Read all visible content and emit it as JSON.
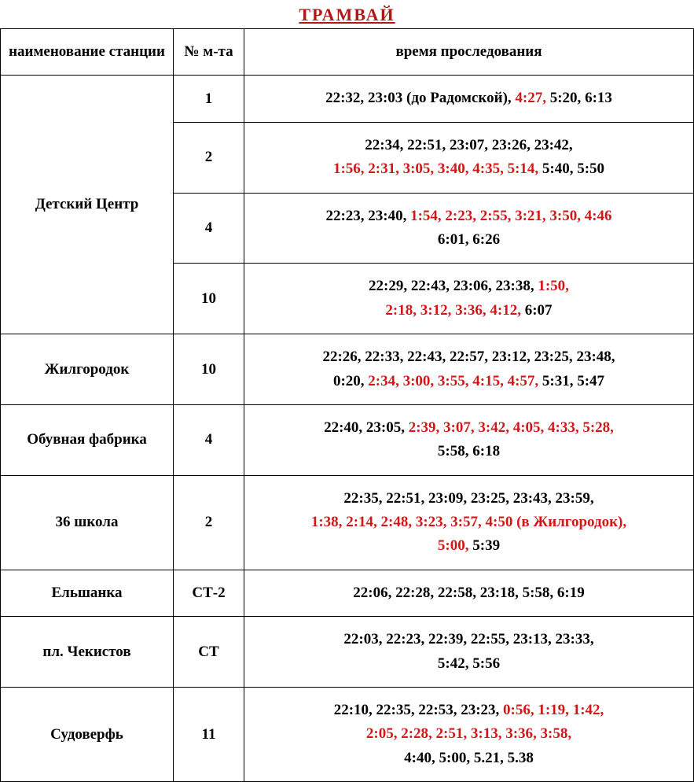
{
  "title": "ТРАМВАЙ",
  "headers": {
    "station": "наименование станции",
    "route": "№ м-та",
    "times": "время проследования"
  },
  "rows": [
    {
      "station": "Детский Центр",
      "rowspan": 4,
      "route": "1",
      "times": [
        {
          "text": "22:32,",
          "color": "black"
        },
        {
          "text": "  23:03 ",
          "color": "black"
        },
        {
          "text": "(до Радомской),",
          "color": "black"
        },
        {
          "text": "  4:27,",
          "color": "red"
        },
        {
          "text": "  5:20,",
          "color": "black"
        },
        {
          "text": "  6:13",
          "color": "black"
        }
      ]
    },
    {
      "route": "2",
      "times": [
        {
          "text": "22:34,",
          "color": "black"
        },
        {
          "text": "  22:51,",
          "color": "black"
        },
        {
          "text": "  23:07,",
          "color": "black"
        },
        {
          "text": "  23:26,",
          "color": "black"
        },
        {
          "text": "  23:42,",
          "color": "black"
        },
        {
          "text": "\n",
          "color": "black"
        },
        {
          "text": "1:56,",
          "color": "red"
        },
        {
          "text": "  2:31,",
          "color": "red"
        },
        {
          "text": "  3:05,",
          "color": "red"
        },
        {
          "text": "  3:40,",
          "color": "red"
        },
        {
          "text": "  4:35,",
          "color": "red"
        },
        {
          "text": "  5:14,",
          "color": "red"
        },
        {
          "text": "  5:40,",
          "color": "black"
        },
        {
          "text": "  5:50",
          "color": "black"
        }
      ]
    },
    {
      "route": "4",
      "times": [
        {
          "text": "22:23,",
          "color": "black"
        },
        {
          "text": "  23:40,",
          "color": "black"
        },
        {
          "text": "  1:54,",
          "color": "red"
        },
        {
          "text": "  2:23,",
          "color": "red"
        },
        {
          "text": "  2:55,",
          "color": "red"
        },
        {
          "text": "  3:21,",
          "color": "red"
        },
        {
          "text": "  3:50,",
          "color": "red"
        },
        {
          "text": "  4:46",
          "color": "red"
        },
        {
          "text": "\n",
          "color": "black"
        },
        {
          "text": "6:01,",
          "color": "black"
        },
        {
          "text": "  6:26",
          "color": "black"
        }
      ]
    },
    {
      "route": "10",
      "times": [
        {
          "text": "22:29,",
          "color": "black"
        },
        {
          "text": "  22:43,",
          "color": "black"
        },
        {
          "text": "  23:06,",
          "color": "black"
        },
        {
          "text": "  23:38,",
          "color": "black"
        },
        {
          "text": " 1:50,",
          "color": "red"
        },
        {
          "text": "\n",
          "color": "black"
        },
        {
          "text": "2:18,",
          "color": "red"
        },
        {
          "text": "  3:12,",
          "color": "red"
        },
        {
          "text": "  3:36,",
          "color": "red"
        },
        {
          "text": "  4:12,",
          "color": "red"
        },
        {
          "text": "  6:07",
          "color": "black"
        }
      ]
    },
    {
      "station": "Жилгородок",
      "route": "10",
      "times": [
        {
          "text": "22:26,",
          "color": "black"
        },
        {
          "text": "  22:33,",
          "color": "black"
        },
        {
          "text": "  22:43,",
          "color": "black"
        },
        {
          "text": "  22:57,",
          "color": "black"
        },
        {
          "text": "  23:12,",
          "color": "black"
        },
        {
          "text": "  23:25,",
          "color": "black"
        },
        {
          "text": "  23:48,",
          "color": "black"
        },
        {
          "text": "\n",
          "color": "black"
        },
        {
          "text": "0:20,",
          "color": "black"
        },
        {
          "text": "  2:34,",
          "color": "red"
        },
        {
          "text": "  3:00,",
          "color": "red"
        },
        {
          "text": "  3:55,",
          "color": "red"
        },
        {
          "text": "  4:15,",
          "color": "red"
        },
        {
          "text": "  4:57,",
          "color": "red"
        },
        {
          "text": "  5:31,",
          "color": "black"
        },
        {
          "text": "  5:47",
          "color": "black"
        }
      ]
    },
    {
      "station": "Обувная фабрика",
      "route": "4",
      "times": [
        {
          "text": "22:40,",
          "color": "black"
        },
        {
          "text": "  23:05,",
          "color": "black"
        },
        {
          "text": "  2:39,",
          "color": "red"
        },
        {
          "text": "  3:07,",
          "color": "red"
        },
        {
          "text": "  3:42,",
          "color": "red"
        },
        {
          "text": "  4:05,",
          "color": "red"
        },
        {
          "text": "  4:33,",
          "color": "red"
        },
        {
          "text": "  5:28,",
          "color": "red"
        },
        {
          "text": "\n",
          "color": "black"
        },
        {
          "text": "5:58,",
          "color": "black"
        },
        {
          "text": "  6:18",
          "color": "black"
        }
      ]
    },
    {
      "station": "36 школа",
      "route": "2",
      "times": [
        {
          "text": "22:35,",
          "color": "black"
        },
        {
          "text": "  22:51,",
          "color": "black"
        },
        {
          "text": "  23:09,",
          "color": "black"
        },
        {
          "text": "  23:25,",
          "color": "black"
        },
        {
          "text": "  23:43,",
          "color": "black"
        },
        {
          "text": "  23:59,",
          "color": "black"
        },
        {
          "text": "\n",
          "color": "black"
        },
        {
          "text": "1:38,",
          "color": "red"
        },
        {
          "text": "  2:14,",
          "color": "red"
        },
        {
          "text": "  2:48,",
          "color": "red"
        },
        {
          "text": "  3:23,",
          "color": "red"
        },
        {
          "text": "  3:57,",
          "color": "red"
        },
        {
          "text": "  4:50 ",
          "color": "red"
        },
        {
          "text": "(в Жилгородок),",
          "color": "red"
        },
        {
          "text": "\n",
          "color": "black"
        },
        {
          "text": "5:00,",
          "color": "red"
        },
        {
          "text": "  5:39",
          "color": "black"
        }
      ]
    },
    {
      "station": "Ельшанка",
      "route": "СТ-2",
      "times": [
        {
          "text": "22:06,",
          "color": "black"
        },
        {
          "text": "  22:28,",
          "color": "black"
        },
        {
          "text": "  22:58,",
          "color": "black"
        },
        {
          "text": "  23:18,",
          "color": "black"
        },
        {
          "text": "  5:58,",
          "color": "black"
        },
        {
          "text": "  6:19",
          "color": "black"
        }
      ]
    },
    {
      "station": "пл. Чекистов",
      "route": "СТ",
      "times": [
        {
          "text": "22:03,",
          "color": "black"
        },
        {
          "text": "  22:23,",
          "color": "black"
        },
        {
          "text": "  22:39,",
          "color": "black"
        },
        {
          "text": "  22:55,",
          "color": "black"
        },
        {
          "text": "  23:13,",
          "color": "black"
        },
        {
          "text": "  23:33,",
          "color": "black"
        },
        {
          "text": "\n",
          "color": "black"
        },
        {
          "text": "5:42,",
          "color": "black"
        },
        {
          "text": "  5:56",
          "color": "black"
        }
      ]
    },
    {
      "station": "Судоверфь",
      "route": "11",
      "times": [
        {
          "text": "22:10,",
          "color": "black"
        },
        {
          "text": "  22:35,",
          "color": "black"
        },
        {
          "text": "  22:53,",
          "color": "black"
        },
        {
          "text": "  23:23,",
          "color": "black"
        },
        {
          "text": "  0:56,",
          "color": "red"
        },
        {
          "text": "  1:19,",
          "color": "red"
        },
        {
          "text": "  1:42,",
          "color": "red"
        },
        {
          "text": "\n",
          "color": "black"
        },
        {
          "text": "2:05,",
          "color": "red"
        },
        {
          "text": " 2:28,",
          "color": "red"
        },
        {
          "text": " 2:51,",
          "color": "red"
        },
        {
          "text": "  3:13,",
          "color": "red"
        },
        {
          "text": "  3:36,",
          "color": "red"
        },
        {
          "text": "  3:58,",
          "color": "red"
        },
        {
          "text": "\n",
          "color": "black"
        },
        {
          "text": "4:40,",
          "color": "black"
        },
        {
          "text": "  5:00,",
          "color": "black"
        },
        {
          "text": "  5.21,",
          "color": "black"
        },
        {
          "text": "  5.38",
          "color": "black"
        }
      ]
    }
  ]
}
